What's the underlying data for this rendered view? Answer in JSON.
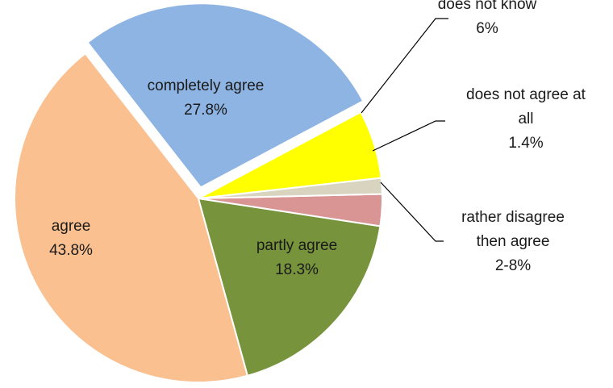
{
  "chart_data": {
    "type": "pie",
    "title": "",
    "start_angle_deg": -28,
    "direction": "counterclockwise",
    "slices": [
      {
        "name": "completely agree",
        "value": 27.8,
        "label_lines": [
          "completely agree",
          "27.8%"
        ],
        "color": "#8eb4e3",
        "label_style": "inside"
      },
      {
        "name": "agree",
        "value": 43.8,
        "label_lines": [
          "agree",
          "43.8%"
        ],
        "color": "#fac090",
        "label_style": "inside"
      },
      {
        "name": "partly agree",
        "value": 18.3,
        "label_lines": [
          "partly agree",
          "18.3%"
        ],
        "color": "#77933c",
        "label_style": "inside"
      },
      {
        "name": "rather disagree then agree",
        "value": 2.8,
        "label_lines": [
          "rather disagree",
          "then agree",
          "2-8%"
        ],
        "color": "#d99594",
        "label_style": "callout"
      },
      {
        "name": "does not agree at all",
        "value": 1.4,
        "label_lines": [
          "does not agree at",
          "all",
          "1.4%"
        ],
        "color": "#d9d4c0",
        "label_style": "callout"
      },
      {
        "name": "does not know",
        "value": 6,
        "label_lines": [
          "does not know",
          "6%"
        ],
        "color": "#ffff00",
        "label_style": "callout"
      }
    ]
  }
}
